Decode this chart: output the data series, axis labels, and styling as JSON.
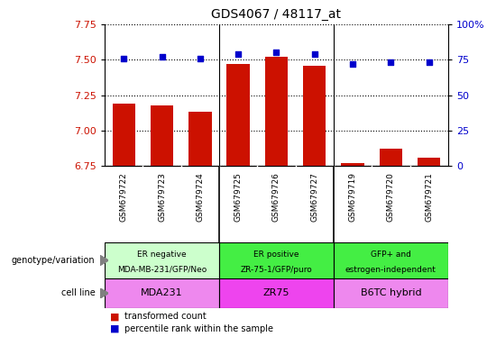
{
  "title": "GDS4067 / 48117_at",
  "samples": [
    "GSM679722",
    "GSM679723",
    "GSM679724",
    "GSM679725",
    "GSM679726",
    "GSM679727",
    "GSM679719",
    "GSM679720",
    "GSM679721"
  ],
  "bar_values": [
    7.19,
    7.18,
    7.13,
    7.47,
    7.52,
    7.46,
    6.77,
    6.87,
    6.81
  ],
  "dot_values": [
    76,
    77,
    76,
    79,
    80,
    79,
    72,
    73,
    73
  ],
  "ylim_left": [
    6.75,
    7.75
  ],
  "ylim_right": [
    0,
    100
  ],
  "yticks_left": [
    6.75,
    7.0,
    7.25,
    7.5,
    7.75
  ],
  "yticks_right": [
    0,
    25,
    50,
    75,
    100
  ],
  "bar_color": "#cc1100",
  "dot_color": "#0000cc",
  "groups": [
    {
      "label_top": "ER negative",
      "label_bot": "MDA-MB-231/GFP/Neo",
      "cell_line": "MDA231",
      "start": 0,
      "end": 3,
      "geno_color": "#ccffcc",
      "cell_color": "#ee88ee"
    },
    {
      "label_top": "ER positive",
      "label_bot": "ZR-75-1/GFP/puro",
      "cell_line": "ZR75",
      "start": 3,
      "end": 6,
      "geno_color": "#44ee44",
      "cell_color": "#ee44ee"
    },
    {
      "label_top": "GFP+ and",
      "label_bot": "estrogen-independent",
      "cell_line": "B6TC hybrid",
      "start": 6,
      "end": 9,
      "geno_color": "#44ee44",
      "cell_color": "#ee88ee"
    }
  ],
  "legend_items": [
    {
      "label": "transformed count",
      "color": "#cc1100"
    },
    {
      "label": "percentile rank within the sample",
      "color": "#0000cc"
    }
  ],
  "left_label_geno": "genotype/variation",
  "left_label_cell": "cell line",
  "tick_color_left": "#cc1100",
  "tick_color_right": "#0000cc",
  "bar_bottom": 6.75,
  "xticklabel_bg": "#cccccc"
}
